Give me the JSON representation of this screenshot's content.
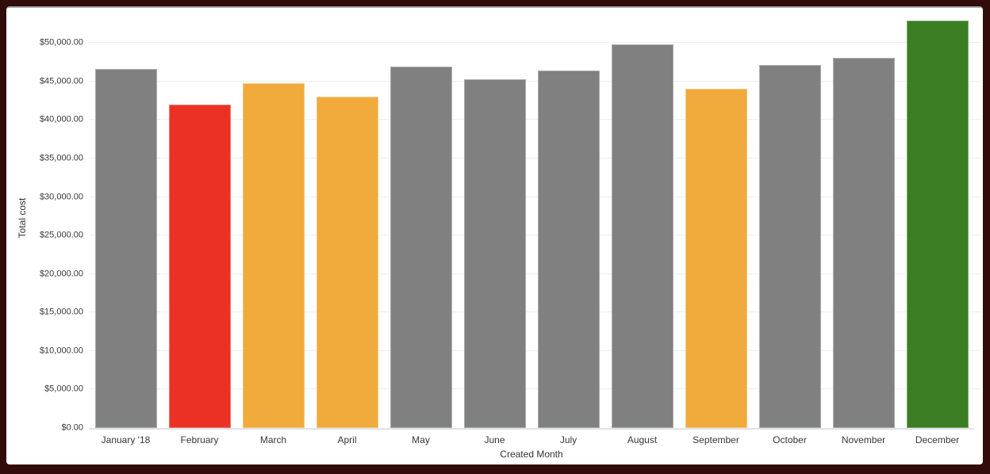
{
  "frame": {
    "border_color": "#310C08",
    "card_background": "#FFFFFF",
    "card_top_divider_color": "#ACACAC"
  },
  "chart_data": {
    "type": "bar",
    "xlabel": "Created Month",
    "ylabel": "Total cost",
    "categories": [
      "January '18",
      "February",
      "March",
      "April",
      "May",
      "June",
      "July",
      "August",
      "September",
      "October",
      "November",
      "December"
    ],
    "values": [
      46600,
      42000,
      44750,
      43050,
      46900,
      45300,
      46450,
      49800,
      44100,
      47100,
      48100,
      52900
    ],
    "bar_color_names": [
      "gray",
      "red",
      "orange",
      "orange",
      "gray",
      "gray",
      "gray",
      "gray",
      "orange",
      "gray",
      "gray",
      "green"
    ],
    "palette": {
      "gray": "#808080",
      "red": "#EB3123",
      "orange": "#F0AB3C",
      "green": "#3A7D22"
    },
    "ylim": [
      0,
      52900
    ],
    "ytick_values": [
      0,
      5000,
      10000,
      15000,
      20000,
      25000,
      30000,
      35000,
      40000,
      45000,
      50000
    ],
    "ytick_labels": [
      "$0.00",
      "$5,000.00",
      "$10,000.00",
      "$15,000.00",
      "$20,000.00",
      "$25,000.00",
      "$30,000.00",
      "$35,000.00",
      "$40,000.00",
      "$45,000.00",
      "$50,000.00"
    ],
    "grid": true,
    "legend": "none",
    "gridline_color": "#EEEEEE",
    "axis_line_color": "#DFE3E8",
    "label_color": "#383838"
  }
}
